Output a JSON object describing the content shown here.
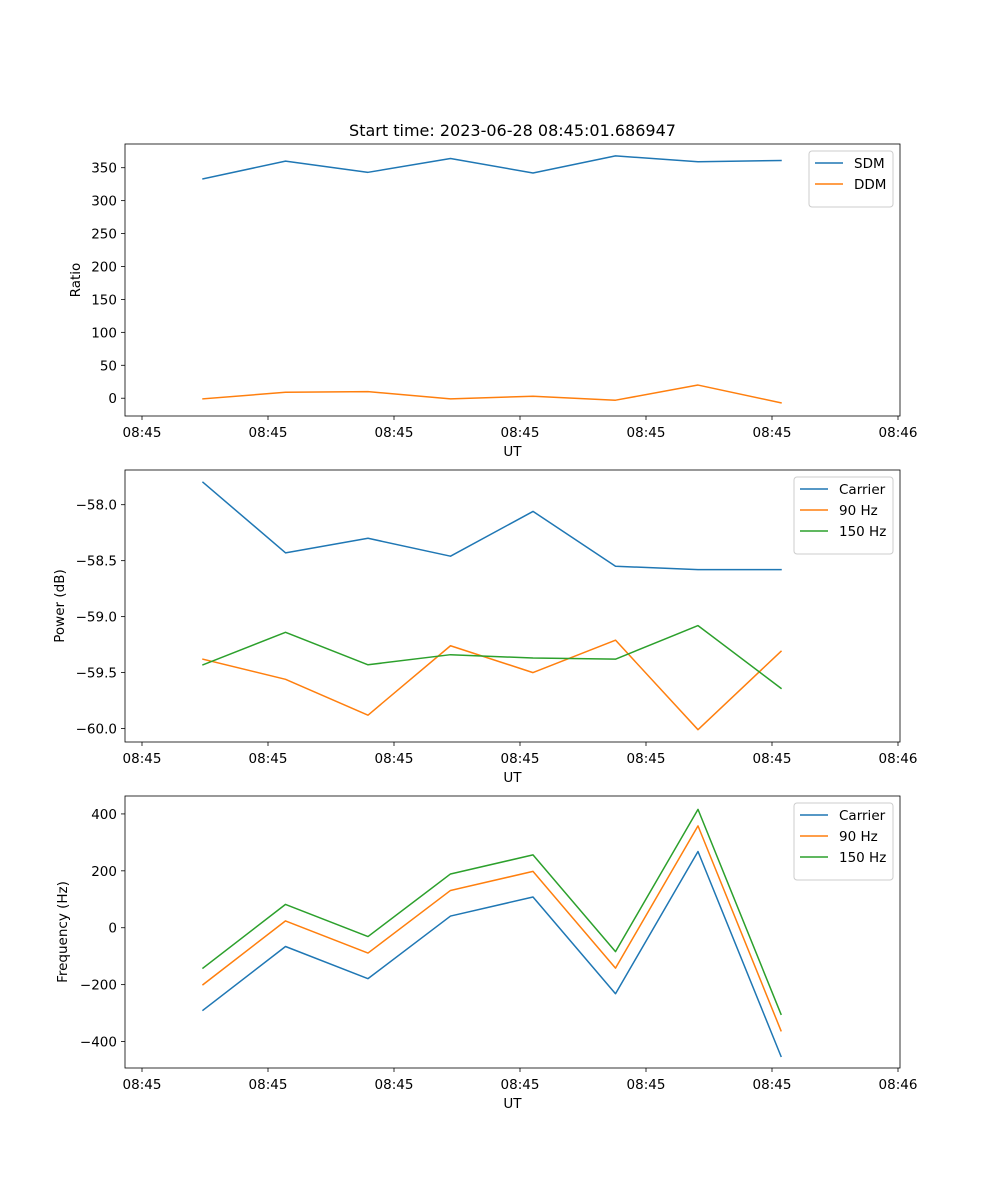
{
  "chart_data": [
    {
      "type": "line",
      "title": "Start time: 2023-06-28 08:45:01.686947",
      "xlabel": "UT",
      "ylabel": "Ratio",
      "x_tick_labels": [
        "08:45",
        "08:45",
        "08:45",
        "08:45",
        "08:45",
        "08:45",
        "08:46"
      ],
      "y_ticks": [
        0,
        50,
        100,
        150,
        200,
        250,
        300,
        350
      ],
      "ylim": [
        -27,
        386
      ],
      "legend_position": "top-right",
      "grid": false,
      "series": [
        {
          "name": "SDM",
          "color": "#1f77b4",
          "values": [
            333,
            360,
            343,
            364,
            342,
            368,
            359,
            361
          ]
        },
        {
          "name": "DDM",
          "color": "#ff7f0e",
          "values": [
            -1,
            9,
            10,
            -1,
            3,
            -3,
            20,
            -7
          ]
        }
      ]
    },
    {
      "type": "line",
      "title": "",
      "xlabel": "UT",
      "ylabel": "Power (dB)",
      "x_tick_labels": [
        "08:45",
        "08:45",
        "08:45",
        "08:45",
        "08:45",
        "08:45",
        "08:46"
      ],
      "y_ticks": [
        -60.0,
        -59.5,
        -59.0,
        -58.5,
        -58.0
      ],
      "y_tick_labels": [
        "−60.0",
        "−59.5",
        "−59.0",
        "−58.5",
        "−58.0"
      ],
      "ylim": [
        -60.12,
        -57.69
      ],
      "legend_position": "top-right",
      "grid": false,
      "series": [
        {
          "name": "Carrier",
          "color": "#1f77b4",
          "values": [
            -57.8,
            -58.43,
            -58.3,
            -58.46,
            -58.06,
            -58.55,
            -58.58,
            -58.58
          ]
        },
        {
          "name": "90 Hz",
          "color": "#ff7f0e",
          "values": [
            -59.38,
            -59.56,
            -59.88,
            -59.26,
            -59.5,
            -59.21,
            -60.01,
            -59.31
          ]
        },
        {
          "name": "150 Hz",
          "color": "#2ca02c",
          "values": [
            -59.43,
            -59.14,
            -59.43,
            -59.34,
            -59.37,
            -59.38,
            -59.08,
            -59.64
          ]
        }
      ]
    },
    {
      "type": "line",
      "title": "",
      "xlabel": "UT",
      "ylabel": "Frequency (Hz)",
      "x_tick_labels": [
        "08:45",
        "08:45",
        "08:45",
        "08:45",
        "08:45",
        "08:45",
        "08:46"
      ],
      "y_ticks": [
        -400,
        -200,
        0,
        200,
        400
      ],
      "y_tick_labels": [
        "−400",
        "−200",
        "0",
        "200",
        "400"
      ],
      "ylim": [
        -493,
        463
      ],
      "legend_position": "top-right",
      "grid": false,
      "series": [
        {
          "name": "Carrier",
          "color": "#1f77b4",
          "values": [
            -290,
            -66,
            -179,
            41,
            108,
            -232,
            268,
            -452
          ]
        },
        {
          "name": "90 Hz",
          "color": "#ff7f0e",
          "values": [
            -200,
            24,
            -89,
            131,
            198,
            -142,
            358,
            -362
          ]
        },
        {
          "name": "150 Hz",
          "color": "#2ca02c",
          "values": [
            -142,
            82,
            -31,
            189,
            256,
            -84,
            416,
            -304
          ]
        }
      ]
    }
  ]
}
